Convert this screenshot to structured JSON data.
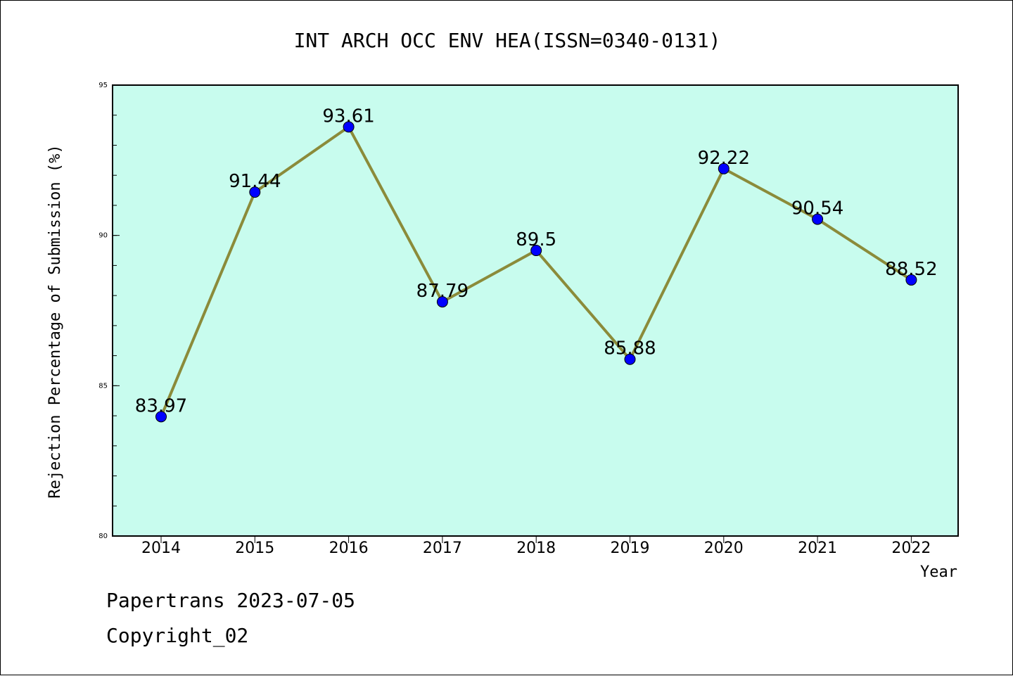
{
  "chart_data": {
    "type": "line",
    "title": "INT ARCH OCC ENV HEA(ISSN=0340-0131)",
    "xlabel": "Year",
    "ylabel": "Rejection Percentage of Submission (%)",
    "categories": [
      "2014",
      "2015",
      "2016",
      "2017",
      "2018",
      "2019",
      "2020",
      "2021",
      "2022"
    ],
    "values": [
      83.97,
      91.44,
      93.61,
      87.79,
      89.5,
      85.88,
      92.22,
      90.54,
      88.52
    ],
    "data_labels": [
      "83.97",
      "91.44",
      "93.61",
      "87.79",
      "89.5",
      "85.88",
      "92.22",
      "90.54",
      "88.52"
    ],
    "ylim": [
      80,
      95
    ],
    "yticks": [
      80,
      85,
      90,
      95
    ],
    "ytick_labels": [
      "80",
      "85",
      "90",
      "95"
    ],
    "grid": false,
    "colors": {
      "plot_background": "#c8fcee",
      "line": "#8b8b3a",
      "marker": "#0000ff",
      "frame": "#000000"
    }
  },
  "footer": {
    "line1": "Papertrans 2023-07-05",
    "line2": "Copyright_02"
  }
}
